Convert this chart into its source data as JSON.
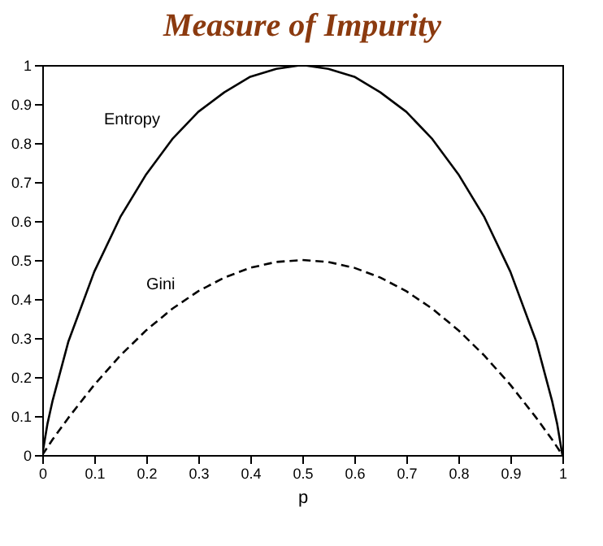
{
  "chart_data": {
    "type": "line",
    "title": "Measure of Impurity",
    "xlabel": "p",
    "x": [
      0,
      0.01,
      0.02,
      0.05,
      0.1,
      0.15,
      0.2,
      0.25,
      0.3,
      0.35,
      0.4,
      0.45,
      0.5,
      0.55,
      0.6,
      0.65,
      0.7,
      0.75,
      0.8,
      0.85,
      0.9,
      0.95,
      0.98,
      0.99,
      1
    ],
    "xlim": [
      0,
      1
    ],
    "ylim": [
      0,
      1
    ],
    "xticks": [
      0,
      0.1,
      0.2,
      0.3,
      0.4,
      0.5,
      0.6,
      0.7,
      0.8,
      0.9,
      1
    ],
    "yticks": [
      0,
      0.1,
      0.2,
      0.3,
      0.4,
      0.5,
      0.6,
      0.7,
      0.8,
      0.9,
      1
    ],
    "marker": "none",
    "series": [
      {
        "name": "Entropy",
        "color": "#000000",
        "line_style": "solid",
        "values": [
          0,
          0.08,
          0.14,
          0.29,
          0.47,
          0.61,
          0.72,
          0.81,
          0.88,
          0.93,
          0.97,
          0.99,
          1,
          0.99,
          0.97,
          0.93,
          0.88,
          0.81,
          0.72,
          0.61,
          0.47,
          0.29,
          0.14,
          0.08,
          0
        ]
      },
      {
        "name": "Gini",
        "color": "#000000",
        "line_style": "dashed",
        "values": [
          0,
          0.02,
          0.04,
          0.095,
          0.18,
          0.255,
          0.32,
          0.375,
          0.42,
          0.455,
          0.48,
          0.495,
          0.5,
          0.495,
          0.48,
          0.455,
          0.42,
          0.375,
          0.32,
          0.255,
          0.18,
          0.095,
          0.04,
          0.02,
          0
        ]
      }
    ]
  }
}
